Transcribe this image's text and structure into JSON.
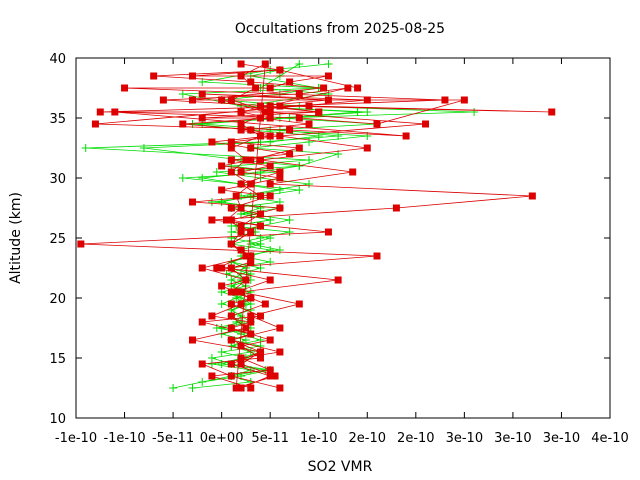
{
  "chart_data": {
    "type": "line",
    "title": "Occultations from 2025-08-25",
    "xlabel": "SO2 VMR",
    "ylabel": "Altitude (km)",
    "xlim": [
      -1.5e-10,
      4e-10
    ],
    "ylim": [
      10,
      40
    ],
    "x_ticks": [
      -1.5e-10,
      -1e-10,
      -5e-11,
      0,
      5e-11,
      1e-10,
      1.5e-10,
      2e-10,
      2.5e-10,
      3e-10,
      3.5e-10,
      4e-10
    ],
    "x_tick_labels": [
      "-1e-10",
      "-1e-10",
      "-5e-11",
      "0e+00",
      "5e-11",
      "1e-10",
      "2e-10",
      "2e-10",
      "3e-10",
      "3e-10",
      "3e-10",
      "4e-10"
    ],
    "y_ticks": [
      10,
      15,
      20,
      25,
      30,
      35,
      40
    ],
    "y_tick_labels": [
      "10",
      "15",
      "20",
      "25",
      "30",
      "35",
      "40"
    ],
    "grid": false,
    "legend": "none",
    "series": [
      {
        "color": "#00dd00",
        "marker": "plus",
        "x": [
          -5e-11,
          1e-11,
          3e-11,
          -1e-11,
          2.5e-11,
          0,
          4e-11,
          1e-11,
          3e-11,
          -5e-12,
          2e-11,
          1e-11,
          3e-11,
          0,
          1.5e-11,
          2e-11,
          1e-11,
          3e-11,
          5e-12,
          2.5e-11,
          1e-11,
          3e-11,
          2e-11,
          4e-11,
          1e-11,
          3.5e-11,
          1.5e-11,
          5e-11,
          2e-11,
          4e-11,
          0,
          3e-11,
          6e-11,
          2e-11,
          -2e-11,
          4e-11,
          8e-11,
          2e-11,
          -8e-11,
          5e-11,
          1e-10,
          3e-11,
          -3e-11,
          7e-11,
          1.5e-10,
          2e-11,
          -4e-11,
          1e-10,
          -2e-11,
          5e-11,
          1.1e-10
        ],
        "y": [
          12.5,
          13.5,
          14,
          14.5,
          15,
          15.5,
          16,
          16.5,
          17,
          17.5,
          18,
          18.5,
          19,
          19.5,
          20,
          20.5,
          21,
          21.5,
          22,
          22.5,
          23,
          23.5,
          24,
          24.5,
          25,
          25.5,
          26,
          26.5,
          27,
          27.5,
          28,
          28.5,
          29,
          29.5,
          30,
          30.5,
          31,
          31.5,
          32.5,
          33,
          33.5,
          34,
          34.5,
          35,
          35.5,
          36,
          37,
          37.5,
          38,
          39,
          39.5
        ]
      },
      {
        "color": "#00dd00",
        "marker": "plus",
        "x": [
          -3e-11,
          3e-11,
          1e-11,
          4.5e-11,
          0,
          2e-11,
          4e-11,
          1e-11,
          2.5e-11,
          0,
          3e-11,
          1.5e-11,
          2e-11,
          1e-11,
          2.5e-11,
          1.5e-11,
          3e-11,
          1e-11,
          2e-11,
          3e-11,
          1e-11,
          5e-11,
          2e-11,
          6e-11,
          3e-11,
          5e-11,
          1e-11,
          4e-11,
          7e-11,
          3e-11,
          1e-11,
          6e-11,
          2e-11,
          9e-11,
          4e-11,
          -5e-12,
          8e-11,
          1.2e-10,
          3e-11,
          9e-11,
          1.5e-10,
          5e-11,
          1.6e-10,
          6e-11,
          2.6e-10,
          8e-11,
          0,
          6e-11,
          1e-10,
          3e-11,
          6e-11
        ],
        "y": [
          12.5,
          13,
          13.5,
          14,
          14.5,
          15,
          15.5,
          16,
          16.5,
          17,
          17.5,
          18,
          18.5,
          19,
          19.5,
          20,
          20.5,
          21,
          21.5,
          22,
          22.5,
          23,
          23.5,
          24,
          24.5,
          25,
          25.5,
          26,
          26.5,
          27,
          27.5,
          28,
          28.5,
          29.5,
          30,
          30.5,
          31,
          32,
          32.5,
          33,
          33.5,
          34,
          34.5,
          35,
          35.5,
          36,
          36.5,
          37,
          37.5,
          38.5,
          39
        ]
      },
      {
        "color": "#00dd00",
        "marker": "plus",
        "x": [
          -2e-11,
          2e-11,
          5e-11,
          1e-11,
          -1e-11,
          3e-11,
          1e-11,
          4e-11,
          2e-11,
          0,
          3e-11,
          2e-11,
          1e-11,
          3e-11,
          2e-11,
          0,
          2.5e-11,
          1e-11,
          2e-11,
          4e-11,
          1e-11,
          3e-11,
          5e-11,
          1e-11,
          4e-11,
          7e-11,
          1e-11,
          5e-11,
          2e-11,
          6e-11,
          -1e-11,
          4e-11,
          8e-11,
          2e-11,
          -4e-11,
          6e-11,
          1e-11,
          9e-11,
          -1.4e-10,
          4e-11,
          1.2e-10,
          6e-11,
          -2e-11,
          1.4e-10,
          2e-11,
          1.1e-10,
          4e-11,
          6e-11,
          8e-11
        ],
        "y": [
          13,
          13.5,
          14,
          14.5,
          15,
          15.5,
          16,
          16.5,
          17,
          17.5,
          18,
          18.5,
          19,
          19.5,
          20,
          20.5,
          21,
          21.5,
          22,
          22.5,
          23,
          23.5,
          24,
          24.5,
          25,
          25.5,
          26,
          26.5,
          27,
          27.5,
          28,
          28.5,
          29,
          29.5,
          30,
          30.5,
          31,
          31.5,
          32.5,
          33,
          33.5,
          34,
          34.5,
          35.5,
          36,
          37,
          37.5,
          38.5,
          39.5
        ]
      },
      {
        "color": "#dd0000",
        "marker": "square",
        "x": [
          2e-11,
          5e-11,
          1e-11,
          4e-11,
          -3e-11,
          2.5e-11,
          1e-11,
          4.5e-11,
          1.5e-11,
          5e-11,
          -5e-12,
          2.5e-11,
          1e-11,
          3e-11,
          5e-12,
          2e-11,
          1.5e-11,
          3e-11,
          1e-11,
          2.5e-11,
          1e-11,
          4e-11,
          2e-11,
          5e-11,
          1e-11,
          3.5e-11,
          2e-11,
          4.5e-11,
          1.5e-11,
          5.5e-11,
          2e-11,
          4e-11,
          1e-11,
          6e-11,
          3e-11,
          8e-11,
          2e-11,
          1.2e-10,
          0,
          1.6e-10,
          -1.45e-10,
          1.1e-10,
          -1e-11,
          1.8e-10,
          3.2e-10,
          5e-11,
          1.35e-10,
          4e-11,
          1.5e-10,
          6e-11,
          2.1e-10,
          4.5e-11,
          0
        ],
        "y": [
          12.5,
          13.5,
          14.5,
          15.5,
          16.5,
          17.5,
          18.5,
          19.5,
          20.5,
          21.5,
          22.5,
          23.5,
          24.5,
          25.5,
          26.5,
          27.5,
          28.5,
          29.5,
          30.5,
          31.5,
          32.5,
          33.5,
          34.5,
          35.5,
          36.5,
          37.5,
          38.5,
          39.5,
          12.5,
          13.5,
          14.5,
          15.5,
          16.5,
          17.5,
          18.5,
          19.5,
          20.5,
          21.5,
          22.5,
          23.5,
          24.5,
          25.5,
          26.5,
          27.5,
          28.5,
          29.5,
          30.5,
          31.5,
          32.5,
          33.5,
          34.5,
          35.5,
          36.5
        ]
      },
      {
        "color": "#dd0000",
        "marker": "square",
        "x": [
          3e-11,
          -1e-11,
          5e-11,
          2e-11,
          6e-11,
          1e-11,
          3e-11,
          -2e-11,
          4e-11,
          1e-11,
          3e-11,
          0,
          2.5e-11,
          1e-11,
          3e-11,
          2e-11,
          1e-11,
          3e-11,
          2e-11,
          4e-11,
          1e-11,
          5e-11,
          0,
          3e-11,
          6e-11,
          2e-11,
          5e-11,
          1e-11,
          7e-11,
          3e-11,
          -1e-11,
          5e-11,
          2e-11,
          9e-11,
          4e-11,
          -2e-11,
          1e-10,
          5e-11,
          -6e-11,
          8e-11,
          1.3e-10,
          2e-11,
          -1.25e-10,
          9e-11,
          3.4e-10,
          6e-11,
          2.3e-10,
          -1e-10,
          5e-11,
          7e-11,
          1.1e-10,
          -3e-11,
          6e-11,
          2e-11
        ],
        "y": [
          12.5,
          13.5,
          14,
          15,
          15.5,
          16.5,
          17,
          18,
          18.5,
          19.5,
          20,
          21,
          21.5,
          22.5,
          23,
          24,
          24.5,
          25.5,
          26,
          27,
          27.5,
          28.5,
          29,
          29.5,
          30,
          30.5,
          31,
          31.5,
          32,
          32.5,
          33,
          33.5,
          34,
          34.5,
          35,
          35,
          35.5,
          36,
          36.5,
          37,
          37.5,
          35.5,
          35.5,
          36,
          35.5,
          36,
          36.5,
          37.5,
          37.5,
          38,
          38.5,
          38.5,
          39,
          39.5
        ]
      },
      {
        "color": "#dd0000",
        "marker": "square",
        "x": [
          6e-11,
          1e-11,
          -2e-11,
          4e-11,
          2e-11,
          5e-11,
          1e-11,
          3e-11,
          -1e-11,
          2e-11,
          3e-11,
          1e-11,
          2.5e-11,
          -2e-11,
          3e-11,
          1e-11,
          2e-11,
          4e-11,
          1e-11,
          6e-11,
          -3e-11,
          4e-11,
          2e-11,
          6e-11,
          0,
          3e-11,
          8e-11,
          1e-11,
          6e-11,
          3e-11,
          -4e-11,
          5e-11,
          2e-11,
          1e-10,
          4e-11,
          1.1e-10,
          -2e-11,
          1.5e-10,
          -1.3e-10,
          7e-11,
          1.9e-10,
          -1.1e-10,
          8e-11,
          1.6e-10,
          2.5e-10,
          -3e-11,
          1.05e-10,
          3e-11,
          -7e-11,
          6e-11,
          1.4e-10
        ],
        "y": [
          12.5,
          13.5,
          14.5,
          15,
          16,
          16.5,
          17.5,
          18,
          18.5,
          19.5,
          20,
          20.5,
          21.5,
          22.5,
          23.5,
          24.5,
          25.5,
          26,
          26.5,
          27.5,
          28,
          28.5,
          29.5,
          30.5,
          31,
          31.5,
          32.5,
          33,
          33.5,
          34,
          34.5,
          35,
          35.5,
          35.5,
          36,
          36.5,
          37,
          36.5,
          34.5,
          34,
          33.5,
          35.5,
          35,
          34.5,
          36.5,
          36.5,
          37.5,
          38,
          38.5,
          39,
          37.5
        ]
      }
    ]
  }
}
